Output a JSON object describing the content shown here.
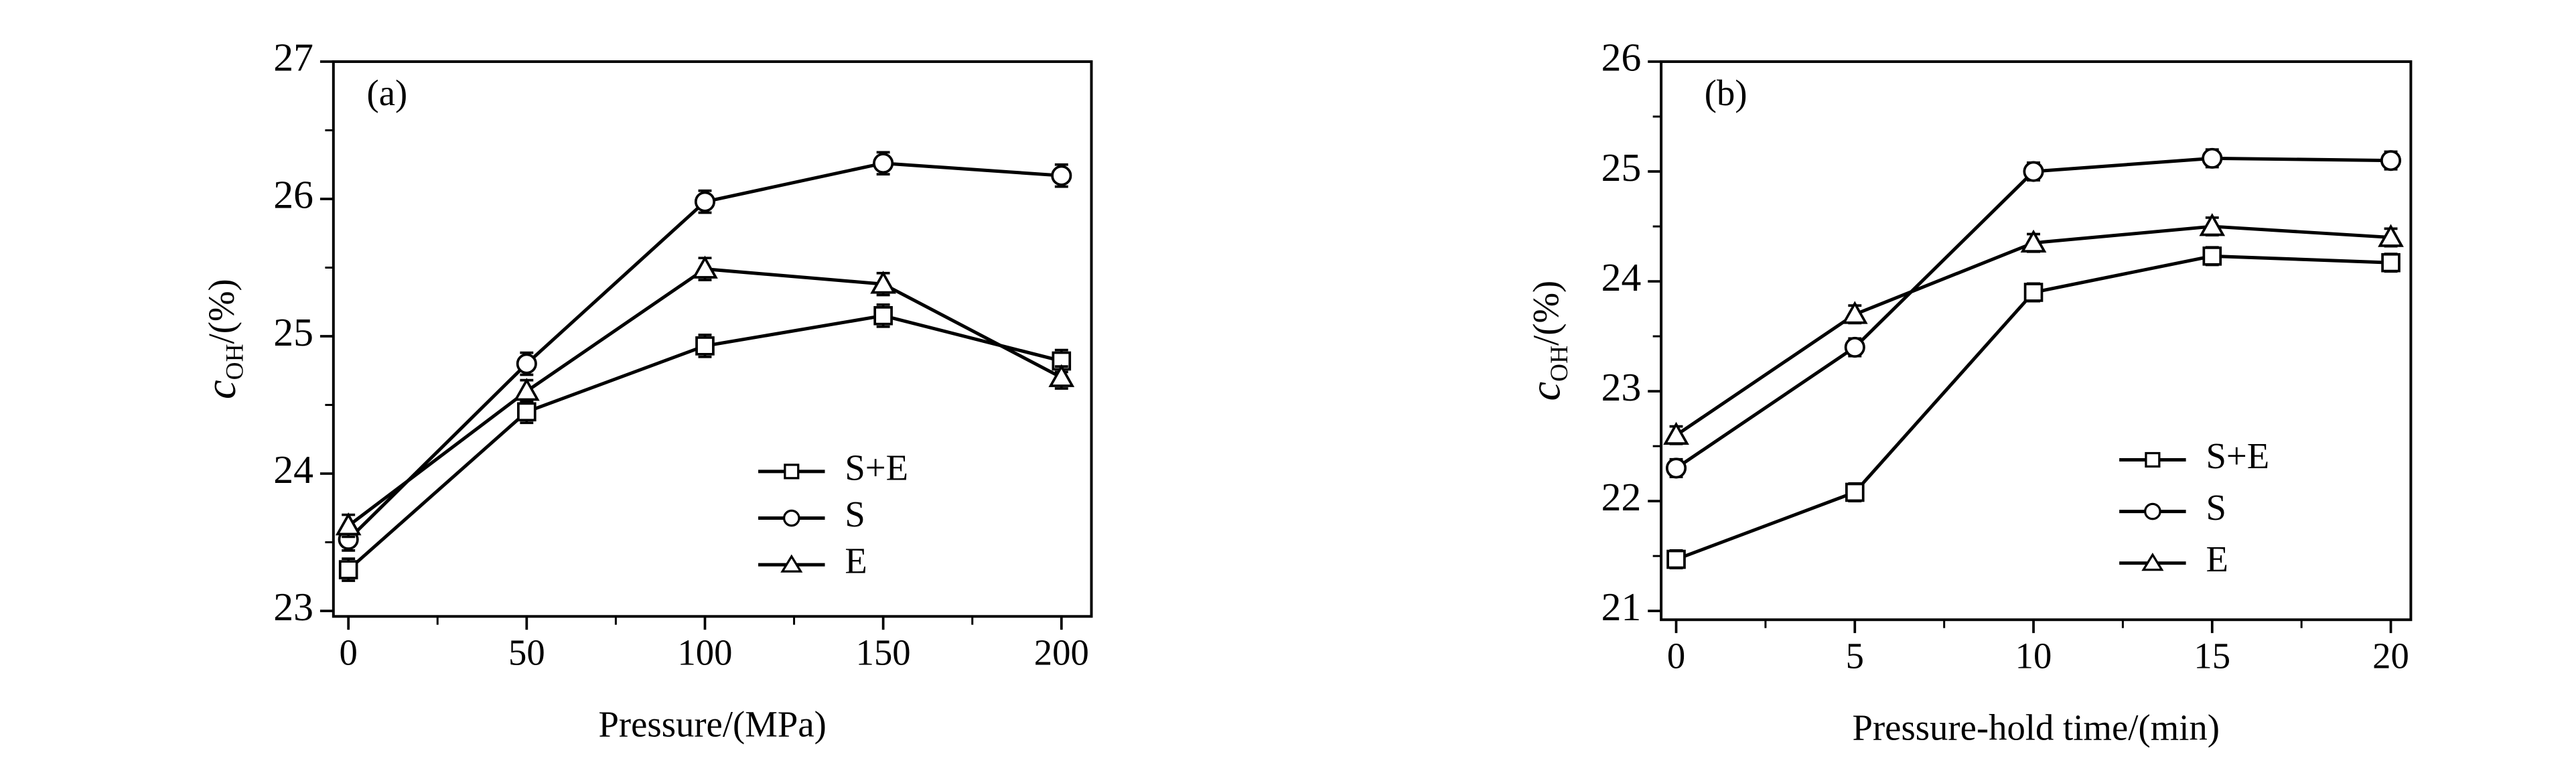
{
  "chart_data": [
    {
      "type": "line",
      "title": "(a)",
      "xlabel": "Pressure/(MPa)",
      "ylabel": "c",
      "ylabel_subscript": "OH",
      "ylabel_suffix": "/(%)",
      "x": [
        0,
        50,
        100,
        150,
        200
      ],
      "xlim": [
        -4.2,
        208.4
      ],
      "xticks": [
        0,
        50,
        100,
        150,
        200
      ],
      "ylim": [
        22.96,
        27
      ],
      "yticks": [
        23,
        24,
        25,
        26,
        27
      ],
      "series": [
        {
          "name": "S+E",
          "color": "#000000",
          "marker": "square",
          "values": [
            23.3,
            24.45,
            24.93,
            25.15,
            24.82
          ],
          "errors": [
            0.08,
            0.08,
            0.08,
            0.08,
            0.08
          ]
        },
        {
          "name": "S",
          "color": "#000000",
          "marker": "circle",
          "values": [
            23.52,
            24.8,
            25.98,
            26.26,
            26.17
          ],
          "errors": [
            0.08,
            0.08,
            0.08,
            0.08,
            0.08
          ]
        },
        {
          "name": "E",
          "color": "#000000",
          "marker": "triangle",
          "values": [
            23.62,
            24.6,
            25.49,
            25.38,
            24.7
          ],
          "errors": [
            0.08,
            0.08,
            0.08,
            0.08,
            0.08
          ]
        }
      ]
    },
    {
      "type": "line",
      "title": "(b)",
      "xlabel": "Pressure-hold time/(min)",
      "ylabel": "c",
      "ylabel_subscript": "OH",
      "ylabel_suffix": "/(%)",
      "x": [
        0,
        5,
        10,
        15,
        20
      ],
      "xlim": [
        -0.42,
        20.56
      ],
      "xticks": [
        0,
        5,
        10,
        15,
        20
      ],
      "ylim": [
        20.92,
        26
      ],
      "yticks": [
        21,
        22,
        23,
        24,
        25,
        26
      ],
      "series": [
        {
          "name": "S+E",
          "color": "#000000",
          "marker": "square",
          "values": [
            21.47,
            22.08,
            23.9,
            24.23,
            24.17
          ],
          "errors": [
            0.08,
            0.08,
            0.08,
            0.08,
            0.08
          ]
        },
        {
          "name": "S",
          "color": "#000000",
          "marker": "circle",
          "values": [
            22.3,
            23.4,
            25.0,
            25.12,
            25.1
          ],
          "errors": [
            0.08,
            0.08,
            0.08,
            0.08,
            0.08
          ]
        },
        {
          "name": "E",
          "color": "#000000",
          "marker": "triangle",
          "values": [
            22.6,
            23.7,
            24.35,
            24.5,
            24.4
          ],
          "errors": [
            0.08,
            0.08,
            0.08,
            0.08,
            0.08
          ]
        }
      ]
    }
  ]
}
